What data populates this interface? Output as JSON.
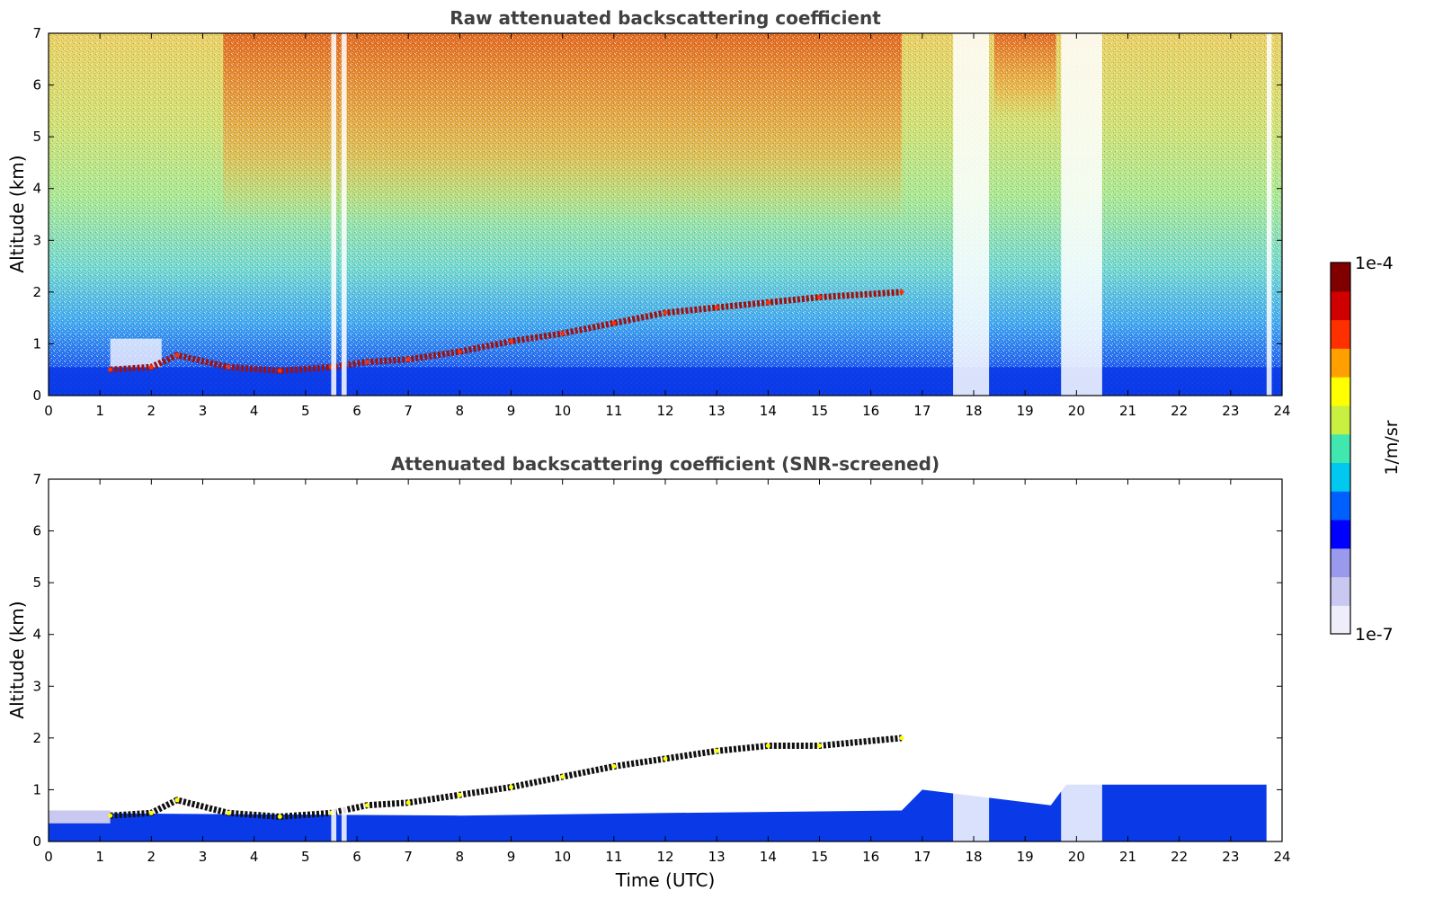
{
  "chart_data": [
    {
      "type": "heatmap",
      "title": "Raw attenuated backscattering coefficient",
      "xlabel": "",
      "ylabel": "Altitude (km)",
      "xlim": [
        0,
        24
      ],
      "ylim": [
        0,
        7
      ],
      "x_ticks": [
        "0",
        "1",
        "2",
        "3",
        "4",
        "5",
        "6",
        "7",
        "8",
        "9",
        "10",
        "11",
        "12",
        "13",
        "14",
        "15",
        "16",
        "17",
        "18",
        "19",
        "20",
        "21",
        "22",
        "23",
        "24"
      ],
      "y_ticks": [
        "0",
        "1",
        "2",
        "3",
        "4",
        "5",
        "6",
        "7"
      ],
      "boundary_layer_top_km": [
        {
          "t": 1.2,
          "z": 0.5
        },
        {
          "t": 2.0,
          "z": 0.55
        },
        {
          "t": 2.5,
          "z": 0.78
        },
        {
          "t": 3.5,
          "z": 0.55
        },
        {
          "t": 4.5,
          "z": 0.48
        },
        {
          "t": 5.5,
          "z": 0.55
        },
        {
          "t": 6.2,
          "z": 0.65
        },
        {
          "t": 7.0,
          "z": 0.7
        },
        {
          "t": 8.0,
          "z": 0.85
        },
        {
          "t": 9.0,
          "z": 1.05
        },
        {
          "t": 10.0,
          "z": 1.2
        },
        {
          "t": 11.0,
          "z": 1.4
        },
        {
          "t": 12.0,
          "z": 1.6
        },
        {
          "t": 13.0,
          "z": 1.7
        },
        {
          "t": 14.0,
          "z": 1.8
        },
        {
          "t": 15.0,
          "z": 1.9
        },
        {
          "t": 16.6,
          "z": 2.0
        }
      ],
      "data_gaps_utc": [
        [
          5.5,
          5.6
        ],
        [
          5.7,
          5.8
        ],
        [
          17.6,
          18.3
        ],
        [
          19.7,
          20.5
        ],
        [
          23.7,
          23.8
        ]
      ]
    },
    {
      "type": "heatmap",
      "title": "Attenuated backscattering coefficient (SNR-screened)",
      "xlabel": "Time (UTC)",
      "ylabel": "Altitude (km)",
      "xlim": [
        0,
        24
      ],
      "ylim": [
        0,
        7
      ],
      "x_ticks": [
        "0",
        "1",
        "2",
        "3",
        "4",
        "5",
        "6",
        "7",
        "8",
        "9",
        "10",
        "11",
        "12",
        "13",
        "14",
        "15",
        "16",
        "17",
        "18",
        "19",
        "20",
        "21",
        "22",
        "23",
        "24"
      ],
      "y_ticks": [
        "0",
        "1",
        "2",
        "3",
        "4",
        "5",
        "6",
        "7"
      ],
      "boundary_layer_top_km": [
        {
          "t": 1.2,
          "z": 0.5
        },
        {
          "t": 2.0,
          "z": 0.55
        },
        {
          "t": 2.5,
          "z": 0.8
        },
        {
          "t": 3.5,
          "z": 0.55
        },
        {
          "t": 4.5,
          "z": 0.48
        },
        {
          "t": 5.5,
          "z": 0.55
        },
        {
          "t": 6.2,
          "z": 0.7
        },
        {
          "t": 7.0,
          "z": 0.75
        },
        {
          "t": 8.0,
          "z": 0.9
        },
        {
          "t": 9.0,
          "z": 1.05
        },
        {
          "t": 10.0,
          "z": 1.25
        },
        {
          "t": 11.0,
          "z": 1.45
        },
        {
          "t": 12.0,
          "z": 1.6
        },
        {
          "t": 13.0,
          "z": 1.75
        },
        {
          "t": 14.0,
          "z": 1.85
        },
        {
          "t": 15.0,
          "z": 1.85
        },
        {
          "t": 16.6,
          "z": 2.0
        }
      ],
      "low_signal_layer_top_km": [
        {
          "t": 0,
          "z": 0.55
        },
        {
          "t": 8,
          "z": 0.5
        },
        {
          "t": 12,
          "z": 0.55
        },
        {
          "t": 16.6,
          "z": 0.6
        },
        {
          "t": 17.0,
          "z": 1.0
        },
        {
          "t": 19.5,
          "z": 0.7
        },
        {
          "t": 19.8,
          "z": 1.1
        },
        {
          "t": 23.7,
          "z": 1.1
        }
      ],
      "data_gaps_utc": [
        [
          5.5,
          5.6
        ],
        [
          5.7,
          5.8
        ],
        [
          17.6,
          18.3
        ],
        [
          19.7,
          20.5
        ],
        [
          23.7,
          23.8
        ]
      ]
    }
  ],
  "colorbar": {
    "max_label": "1e-4",
    "min_label": "1e-7",
    "unit_label": "1/m/sr",
    "colors": [
      "#eeeefa",
      "#c8c8f0",
      "#9999ee",
      "#0000ff",
      "#0060ff",
      "#00c8f0",
      "#40e8b0",
      "#c8f040",
      "#ffff00",
      "#ffa000",
      "#ff3000",
      "#d00000",
      "#800000"
    ]
  }
}
